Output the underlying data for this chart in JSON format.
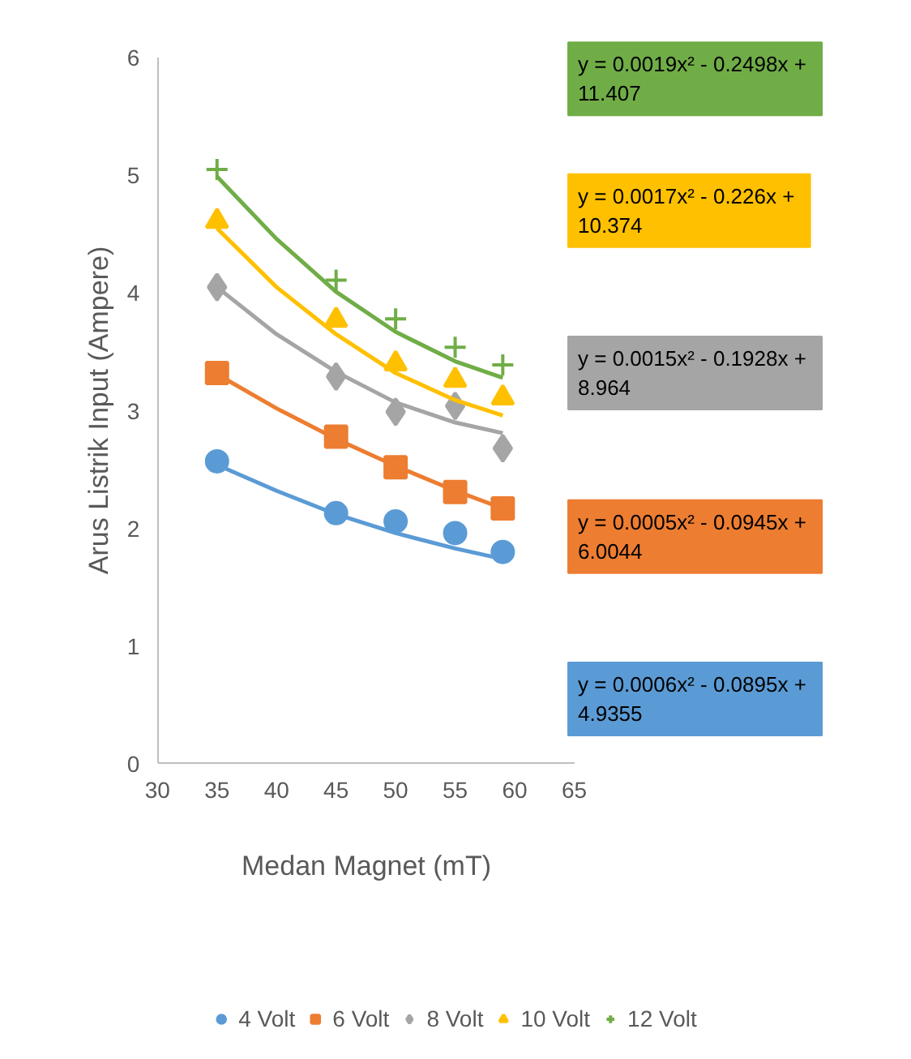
{
  "chart_data": {
    "type": "scatter",
    "xlabel": "Medan Magnet (mT)",
    "ylabel": "Arus Listrik Input (Ampere)",
    "xlim": [
      30,
      65
    ],
    "xticks": [
      30,
      35,
      40,
      45,
      50,
      55,
      60,
      65
    ],
    "ylim": [
      0,
      6
    ],
    "yticks": [
      0,
      1,
      2,
      3,
      4,
      5,
      6
    ],
    "grid": false,
    "legend": "bottom",
    "x": [
      35,
      45,
      50,
      55,
      59
    ],
    "series": [
      {
        "name": "4 Volt",
        "color": "#5b9bd5",
        "marker": "circle",
        "values": [
          2.57,
          2.13,
          2.06,
          1.96,
          1.8
        ]
      },
      {
        "name": "6 Volt",
        "color": "#ed7d31",
        "marker": "square",
        "values": [
          3.32,
          2.78,
          2.52,
          2.31,
          2.17
        ]
      },
      {
        "name": "8 Volt",
        "color": "#a5a5a5",
        "marker": "diamond",
        "values": [
          4.05,
          3.29,
          2.99,
          3.04,
          2.68
        ]
      },
      {
        "name": "10 Volt",
        "color": "#ffc000",
        "marker": "triangle",
        "values": [
          4.61,
          3.77,
          3.4,
          3.26,
          3.11
        ]
      },
      {
        "name": "12 Volt",
        "color": "#70ad47",
        "marker": "cross",
        "values": [
          5.05,
          4.11,
          3.78,
          3.54,
          3.39
        ]
      },
      {
        "type": "line",
        "color": "#5b9bd5",
        "x": [
          35,
          40,
          45,
          50,
          55,
          59
        ],
        "values": [
          2.54,
          2.32,
          2.12,
          1.96,
          1.83,
          1.74
        ]
      },
      {
        "type": "line",
        "color": "#ed7d31",
        "x": [
          35,
          40,
          45,
          50,
          55,
          59
        ],
        "values": [
          3.31,
          3.02,
          2.76,
          2.53,
          2.32,
          2.17
        ]
      },
      {
        "type": "line",
        "color": "#a5a5a5",
        "x": [
          35,
          40,
          45,
          50,
          55,
          59
        ],
        "values": [
          4.05,
          3.65,
          3.33,
          3.07,
          2.9,
          2.81
        ]
      },
      {
        "type": "line",
        "color": "#ffc000",
        "x": [
          35,
          40,
          45,
          50,
          55,
          59
        ],
        "values": [
          4.55,
          4.05,
          3.65,
          3.32,
          3.09,
          2.96
        ]
      },
      {
        "type": "line",
        "color": "#70ad47",
        "x": [
          35,
          40,
          45,
          50,
          55,
          59
        ],
        "values": [
          4.99,
          4.46,
          4.01,
          3.67,
          3.42,
          3.28
        ]
      }
    ],
    "annotations": [
      "y = 0.0006x² - 0.0895x + \n4.9355",
      "y = 0.0005x² - 0.0945x + \n6.0044",
      "y = 0.0015x² - 0.1928x + \n8.964",
      "y = 0.0017x² - 0.226x + \n10.374",
      "y = 0.0019x² - 0.2498x + \n11.407"
    ]
  }
}
